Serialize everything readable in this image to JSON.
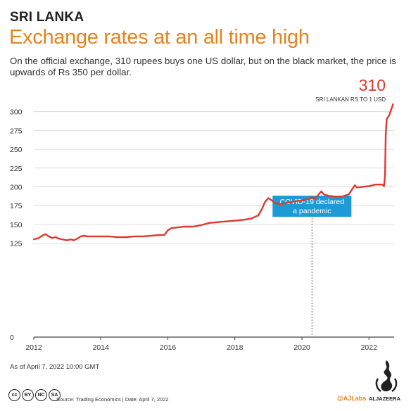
{
  "header": {
    "kicker": "SRI LANKA",
    "title": "Exchange rates at an all time high",
    "subtitle": "On the official exchange, 310 rupees buys one US dollar, but on the black market, the price is upwards of Rs 350 per dollar."
  },
  "chart_data": {
    "type": "line",
    "series_color": "#e0382f",
    "accent_color": "#e8821e",
    "callout_color": "#1e9bd7",
    "xlim": [
      2012,
      2022.75
    ],
    "ylim": [
      0,
      310
    ],
    "x_ticks": [
      2012,
      2014,
      2016,
      2018,
      2020,
      2022
    ],
    "y_ticks": [
      0,
      125,
      150,
      175,
      200,
      225,
      250,
      275,
      300
    ],
    "grid": "horizontal",
    "end_label": {
      "value": "310",
      "caption": "SRI LANKAN RS TO 1 USD"
    },
    "annotation": {
      "x": 2020.3,
      "text_line1": "COVID-19 declared",
      "text_line2": "a pandemic"
    },
    "series": [
      {
        "values": [
          [
            2012.0,
            130
          ],
          [
            2012.08,
            131
          ],
          [
            2012.15,
            132
          ],
          [
            2012.25,
            135
          ],
          [
            2012.35,
            137
          ],
          [
            2012.45,
            134
          ],
          [
            2012.55,
            132
          ],
          [
            2012.65,
            133
          ],
          [
            2012.75,
            131
          ],
          [
            2012.85,
            130
          ],
          [
            2013.0,
            129
          ],
          [
            2013.1,
            130
          ],
          [
            2013.2,
            129
          ],
          [
            2013.3,
            131
          ],
          [
            2013.4,
            134
          ],
          [
            2013.5,
            135
          ],
          [
            2013.6,
            134
          ],
          [
            2013.75,
            134
          ],
          [
            2014.0,
            134
          ],
          [
            2014.25,
            134
          ],
          [
            2014.5,
            133
          ],
          [
            2014.75,
            133
          ],
          [
            2015.0,
            134
          ],
          [
            2015.25,
            134
          ],
          [
            2015.5,
            135
          ],
          [
            2015.75,
            136
          ],
          [
            2015.9,
            136
          ],
          [
            2016.0,
            142
          ],
          [
            2016.1,
            145
          ],
          [
            2016.3,
            146
          ],
          [
            2016.5,
            147
          ],
          [
            2016.75,
            147
          ],
          [
            2017.0,
            149
          ],
          [
            2017.25,
            152
          ],
          [
            2017.5,
            153
          ],
          [
            2017.75,
            154
          ],
          [
            2018.0,
            155
          ],
          [
            2018.25,
            156
          ],
          [
            2018.5,
            158
          ],
          [
            2018.7,
            162
          ],
          [
            2018.8,
            170
          ],
          [
            2018.9,
            180
          ],
          [
            2019.0,
            185
          ],
          [
            2019.1,
            182
          ],
          [
            2019.2,
            178
          ],
          [
            2019.35,
            177
          ],
          [
            2019.5,
            178
          ],
          [
            2019.7,
            180
          ],
          [
            2019.85,
            181
          ],
          [
            2020.0,
            182
          ],
          [
            2020.2,
            184
          ],
          [
            2020.3,
            186
          ],
          [
            2020.4,
            184
          ],
          [
            2020.5,
            190
          ],
          [
            2020.58,
            194
          ],
          [
            2020.65,
            190
          ],
          [
            2020.8,
            188
          ],
          [
            2021.0,
            187
          ],
          [
            2021.2,
            187
          ],
          [
            2021.4,
            190
          ],
          [
            2021.5,
            197
          ],
          [
            2021.58,
            202
          ],
          [
            2021.65,
            199
          ],
          [
            2021.8,
            200
          ],
          [
            2022.0,
            201
          ],
          [
            2022.2,
            203
          ],
          [
            2022.4,
            203
          ],
          [
            2022.45,
            201
          ],
          [
            2022.48,
            215
          ],
          [
            2022.5,
            270
          ],
          [
            2022.53,
            290
          ],
          [
            2022.6,
            295
          ],
          [
            2022.68,
            305
          ],
          [
            2022.72,
            310
          ]
        ]
      }
    ]
  },
  "footer": {
    "as_of": "As of April 7, 2022 10:00 GMT",
    "source": "Source: Trading Economics  |  Date: April 7, 2022",
    "credit": "@AJLabs",
    "brand": "ALJAZEERA",
    "license_icons": [
      "cc",
      "by",
      "nc",
      "sa"
    ]
  }
}
